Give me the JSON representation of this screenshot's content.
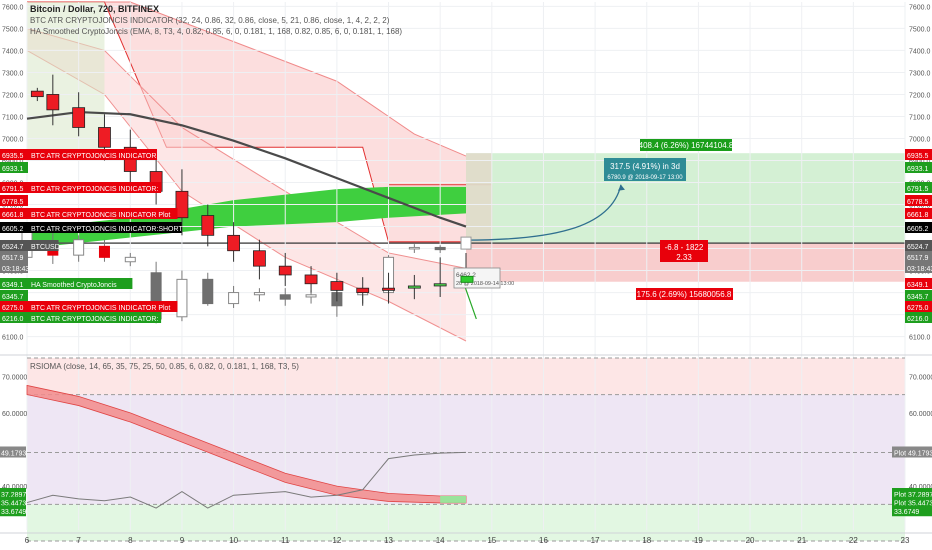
{
  "header": {
    "title": "Bitcoin / Dollar, 720, BITFINEX",
    "indicator1": "BTC ATR CRYPTOJONCIS INDICATOR (32, 24, 0.86, 32, 0.86, close, 5, 21, 0.86, close, 1, 4, 2, 2, 2)",
    "indicator2": "HA Smoothed CryptoJoncis (EMA, 8, T3, 4, 0.82, 0.85, 6, 0, 0.181, 1, 168, 0.82, 0.85, 6, 0, 0.181, 1, 168)",
    "rsioma": "RSIOMA (close, 14, 65, 35, 75, 25, 50, 0.85, 6, 0.82, 0, 0.181, 1, 168, T3, 5)"
  },
  "colors": {
    "bull": "#4cd64c",
    "bear": "#ee1c24",
    "ha_bear": "#e8000b",
    "ha_bull": "#ffffff",
    "tp_zone": "#c9ecc9",
    "sl_zone": "#f6c1c1",
    "ma_line": "#4a4a4a",
    "blue_line": "#2f6f8f"
  },
  "left_tags": [
    {
      "text": "BTC ATR CRYPTOJONCIS INDICATOR",
      "value": "6935.5",
      "color": "#e8000b"
    },
    {
      "text": "",
      "value": "6933.1",
      "color": "#1e9e1e"
    },
    {
      "text": "BTC ATR CRYPTOJONCIS INDICATOR:",
      "value": "6791.5",
      "color": "#e8000b"
    },
    {
      "text": "",
      "value": "6778.5",
      "color": "#e8000b"
    },
    {
      "text": "BTC ATR CRYPTOJONCIS INDICATOR Plot",
      "value": "6661.8",
      "color": "#e8000b"
    },
    {
      "text": "BTC ATR CRYPTOJONCIS INDICATOR:SHORT",
      "value": "6605.2",
      "color": "#000000"
    },
    {
      "text": "BTCUSD",
      "value": "6524.7",
      "color": "#555555"
    },
    {
      "text": "",
      "value": "6517.9",
      "color": "#777777"
    },
    {
      "text": "",
      "value": "03:18:43",
      "color": "#777777"
    },
    {
      "text": "HA Smoothed CryptoJoncis",
      "value": "6349.1",
      "color": "#1e9e1e"
    },
    {
      "text": "",
      "value": "6345.7",
      "color": "#1e9e1e"
    },
    {
      "text": "BTC ATR CRYPTOJONCIS INDICATOR Plot",
      "value": "6275.0",
      "color": "#e8000b"
    },
    {
      "text": "BTC ATR CRYPTOJONCIS INDICATOR:",
      "value": "6216.0",
      "color": "#1e9e1e"
    }
  ],
  "right_tags": [
    {
      "value": "6935.5",
      "color": "#e8000b"
    },
    {
      "value": "6933.1",
      "color": "#1e9e1e"
    },
    {
      "value": "6791.5",
      "color": "#1e9e1e"
    },
    {
      "value": "6778.5",
      "color": "#e8000b"
    },
    {
      "value": "6661.8",
      "color": "#e8000b"
    },
    {
      "value": "6605.2",
      "color": "#000000"
    },
    {
      "value": "6524.7",
      "color": "#555555"
    },
    {
      "value": "6517.9",
      "color": "#777777"
    },
    {
      "value": "03:18:43",
      "color": "#777777"
    },
    {
      "value": "6349.1",
      "color": "#e8000b"
    },
    {
      "value": "6345.7",
      "color": "#1e9e1e"
    },
    {
      "value": "6275.0",
      "color": "#e8000b"
    },
    {
      "value": "6216.0",
      "color": "#1e9e1e"
    }
  ],
  "annotations": {
    "tp_label": "408.4 (6.26%) 16744104.8",
    "sl_label": "175.6 (2.69%) 15680056.8",
    "rr_line1": "-6.8 - 1822",
    "rr_line2": "2.33",
    "proj_line1": "317.5 (4.91%) in 3d",
    "proj_line2": "6780.9 @ 2018-09-17 13:00",
    "tooltip_line1": "6462.2",
    "tooltip_line2": "20 @ 2018-09-14 13:00"
  },
  "rsioma_panel": {
    "left_tags": [
      {
        "value": "49.1793",
        "color": "#888888"
      },
      {
        "value": "37.2897",
        "color": "#1e9e1e"
      },
      {
        "value": "35.4473",
        "color": "#1e9e1e"
      },
      {
        "value": "33.6749",
        "color": "#1e9e1e"
      }
    ],
    "right_tags": [
      {
        "label": "Plot",
        "value": "49.1793",
        "color": "#888888"
      },
      {
        "label": "Plot",
        "value": "37.2897",
        "color": "#1e9e1e"
      },
      {
        "label": "Plot",
        "value": "35.4473",
        "color": "#1e9e1e"
      },
      {
        "label": "",
        "value": "33.6749",
        "color": "#1e9e1e"
      }
    ]
  },
  "chart_data": [
    {
      "type": "candlestick",
      "title": "Bitcoin / Dollar, 720, BITFINEX",
      "xlabel": "",
      "ylabel": "",
      "x_ticks": [
        "6",
        "7",
        "8",
        "9",
        "10",
        "11",
        "12",
        "13",
        "14",
        "15",
        "16",
        "17",
        "18",
        "19",
        "20",
        "21",
        "22",
        "23"
      ],
      "y_ticks": [
        6100,
        6200,
        6300,
        6400,
        6500,
        6600,
        6700,
        6800,
        6900,
        7000,
        7100,
        7200,
        7300,
        7400,
        7500,
        7600
      ],
      "ylim": [
        6030,
        7620
      ],
      "xlim": [
        6,
        23
      ],
      "grid": true,
      "candles": [
        {
          "x": 6.2,
          "open": 7215,
          "high": 7230,
          "low": 7170,
          "close": 7190,
          "color": "bear"
        },
        {
          "x": 6.5,
          "open": 7200,
          "high": 7290,
          "low": 7060,
          "close": 7130,
          "color": "bear"
        },
        {
          "x": 7.0,
          "open": 7140,
          "high": 7210,
          "low": 7010,
          "close": 7050,
          "color": "bear"
        },
        {
          "x": 7.5,
          "open": 7050,
          "high": 7110,
          "low": 6900,
          "close": 6960,
          "color": "bear"
        },
        {
          "x": 8.0,
          "open": 6960,
          "high": 7040,
          "low": 6780,
          "close": 6850,
          "color": "bear"
        },
        {
          "x": 8.5,
          "open": 6850,
          "high": 6920,
          "low": 6700,
          "close": 6760,
          "color": "bear"
        },
        {
          "x": 9.0,
          "open": 6760,
          "high": 6860,
          "low": 6560,
          "close": 6640,
          "color": "bear"
        },
        {
          "x": 9.5,
          "open": 6650,
          "high": 6700,
          "low": 6510,
          "close": 6560,
          "color": "bear"
        },
        {
          "x": 10.0,
          "open": 6560,
          "high": 6620,
          "low": 6440,
          "close": 6490,
          "color": "bear"
        },
        {
          "x": 10.5,
          "open": 6490,
          "high": 6540,
          "low": 6360,
          "close": 6420,
          "color": "bear"
        },
        {
          "x": 11.0,
          "open": 6420,
          "high": 6480,
          "low": 6330,
          "close": 6380,
          "color": "bear"
        },
        {
          "x": 11.5,
          "open": 6380,
          "high": 6420,
          "low": 6300,
          "close": 6340,
          "color": "bear"
        },
        {
          "x": 12.0,
          "open": 6350,
          "high": 6390,
          "low": 6260,
          "close": 6310,
          "color": "bear"
        },
        {
          "x": 12.5,
          "open": 6320,
          "high": 6370,
          "low": 6240,
          "close": 6300,
          "color": "bear"
        },
        {
          "x": 13.0,
          "open": 6320,
          "high": 6390,
          "low": 6250,
          "close": 6310,
          "color": "bear"
        },
        {
          "x": 13.5,
          "open": 6320,
          "high": 6380,
          "low": 6270,
          "close": 6330,
          "color": "bull"
        },
        {
          "x": 14.0,
          "open": 6330,
          "high": 6460,
          "low": 6280,
          "close": 6340,
          "color": "bull"
        },
        {
          "x": 14.5,
          "open": 6345,
          "high": 6480,
          "low": 6320,
          "close": 6350,
          "color": "bull"
        }
      ],
      "ha_candles": [
        {
          "x": 6.0,
          "open": 6460,
          "high": 6580,
          "low": 6420,
          "close": 6580,
          "color": "ha_bull"
        },
        {
          "x": 6.5,
          "open": 6500,
          "high": 6580,
          "low": 6430,
          "close": 6470,
          "color": "ha_bear"
        },
        {
          "x": 7.0,
          "open": 6470,
          "high": 6560,
          "low": 6440,
          "close": 6540,
          "color": "ha_bull"
        },
        {
          "x": 7.5,
          "open": 6510,
          "high": 6540,
          "low": 6440,
          "close": 6460,
          "color": "ha_bear"
        },
        {
          "x": 8.0,
          "open": 6440,
          "high": 6480,
          "low": 6420,
          "close": 6460,
          "color": "ha_bull"
        },
        {
          "x": 8.5,
          "open": 6180,
          "high": 6440,
          "low": 6160,
          "close": 6390,
          "color": "ha_gray"
        },
        {
          "x": 9.0,
          "open": 6190,
          "high": 6400,
          "low": 6170,
          "close": 6360,
          "color": "ha_bull"
        },
        {
          "x": 9.5,
          "open": 6360,
          "high": 6390,
          "low": 6240,
          "close": 6250,
          "color": "ha_gray"
        },
        {
          "x": 10.0,
          "open": 6250,
          "high": 6330,
          "low": 6230,
          "close": 6300,
          "color": "ha_bull"
        },
        {
          "x": 10.5,
          "open": 6290,
          "high": 6320,
          "low": 6260,
          "close": 6300,
          "color": "ha_bull"
        },
        {
          "x": 11.0,
          "open": 6290,
          "high": 6320,
          "low": 6240,
          "close": 6270,
          "color": "ha_gray"
        },
        {
          "x": 11.5,
          "open": 6280,
          "high": 6310,
          "low": 6250,
          "close": 6290,
          "color": "ha_bull"
        },
        {
          "x": 12.0,
          "open": 6300,
          "high": 6320,
          "low": 6190,
          "close": 6240,
          "color": "ha_gray"
        },
        {
          "x": 12.5,
          "open": 6290,
          "high": 6320,
          "low": 6250,
          "close": 6300,
          "color": "ha_bull"
        },
        {
          "x": 13.0,
          "open": 6300,
          "high": 6470,
          "low": 6260,
          "close": 6460,
          "color": "ha_bull"
        },
        {
          "x": 13.5,
          "open": 6500,
          "high": 6520,
          "low": 6480,
          "close": 6505,
          "color": "ha_bull"
        },
        {
          "x": 14.0,
          "open": 6495,
          "high": 6515,
          "low": 6480,
          "close": 6505,
          "color": "ha_gray"
        }
      ],
      "ma_line": {
        "x": [
          6.0,
          7.0,
          8.0,
          9.0,
          10.0,
          11.0,
          12.0,
          13.0,
          14.0,
          14.5
        ],
        "y": [
          7090,
          7120,
          7110,
          7060,
          6990,
          6910,
          6820,
          6730,
          6640,
          6600
        ]
      },
      "levels": {
        "entry": 6524.7,
        "take_profit": 6933.1,
        "stop_loss": 6349.1
      }
    },
    {
      "type": "line",
      "title": "RSIOMA (close, 14, 65, 35, 75, 25, 50, 0.85, 6, 0.82, 0, 0.181, 1, 168, T3, 5)",
      "xlabel": "",
      "ylabel": "",
      "y_ticks": [
        40.0,
        60.0,
        70.0
      ],
      "ylim": [
        28,
        75
      ],
      "grid": true,
      "rsi_x": [
        6.0,
        6.5,
        7.0,
        7.5,
        8.0,
        8.5,
        9.0,
        9.5,
        10.0,
        10.5,
        11.0,
        11.5,
        12.0,
        12.5,
        13.0,
        13.5,
        14.0,
        14.5
      ],
      "rsi_values": [
        35.5,
        37.5,
        36.5,
        36.0,
        37.0,
        34.0,
        38.5,
        34.0,
        37.5,
        38.0,
        38.5,
        37.0,
        37.5,
        39.0,
        47.5,
        48.5,
        49.0,
        49.2
      ],
      "signal_band": {
        "x": [
          6.0,
          7.0,
          8.0,
          9.0,
          10.0,
          11.0,
          12.0,
          13.0,
          14.0,
          14.5
        ],
        "upper": [
          67.5,
          64.5,
          60.0,
          54.5,
          49.0,
          43.5,
          40.0,
          38.0,
          37.3,
          37.3
        ],
        "lower": [
          65.0,
          62.0,
          57.5,
          52.0,
          46.5,
          41.0,
          37.5,
          35.8,
          35.4,
          35.4
        ]
      },
      "bands": {
        "overbought": 75,
        "upper": 65,
        "mid": 49.1793,
        "lower": 35,
        "oversold": 25
      }
    }
  ]
}
